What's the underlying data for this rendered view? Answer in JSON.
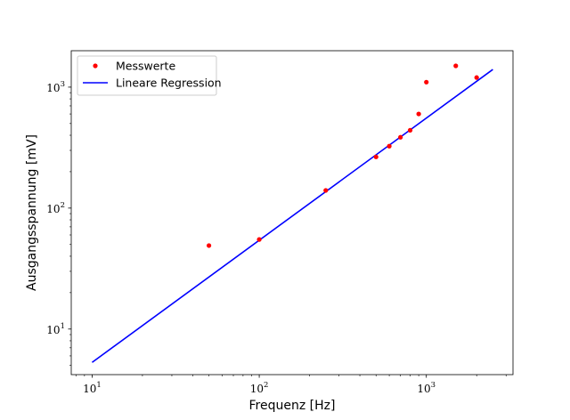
{
  "chart_data": {
    "type": "scatter",
    "title": "",
    "xlabel": "Frequenz [Hz]",
    "ylabel": "Ausgangsspannung [mV]",
    "xscale": "log",
    "yscale": "log",
    "xlim": [
      7.5,
      3300
    ],
    "ylim": [
      4.2,
      2000
    ],
    "x_ticks": [
      {
        "value": 10,
        "base": "10",
        "exp": "1"
      },
      {
        "value": 100,
        "base": "10",
        "exp": "2"
      },
      {
        "value": 1000,
        "base": "10",
        "exp": "3"
      }
    ],
    "y_ticks": [
      {
        "value": 10,
        "base": "10",
        "exp": "1"
      },
      {
        "value": 100,
        "base": "10",
        "exp": "2"
      },
      {
        "value": 1000,
        "base": "10",
        "exp": "3"
      }
    ],
    "grid": false,
    "legend_position": "top-left",
    "series": [
      {
        "name": "Messwerte",
        "kind": "scatter",
        "color": "#ff0000",
        "x": [
          50,
          100,
          250,
          500,
          600,
          700,
          800,
          900,
          1000,
          1500,
          2000
        ],
        "y": [
          49,
          55,
          140,
          265,
          325,
          385,
          440,
          600,
          1100,
          1500,
          1200
        ]
      },
      {
        "name": "Lineare Regression",
        "kind": "line",
        "color": "#0000ff",
        "x": [
          10,
          2500
        ],
        "y": [
          5.3,
          1400
        ]
      }
    ]
  }
}
